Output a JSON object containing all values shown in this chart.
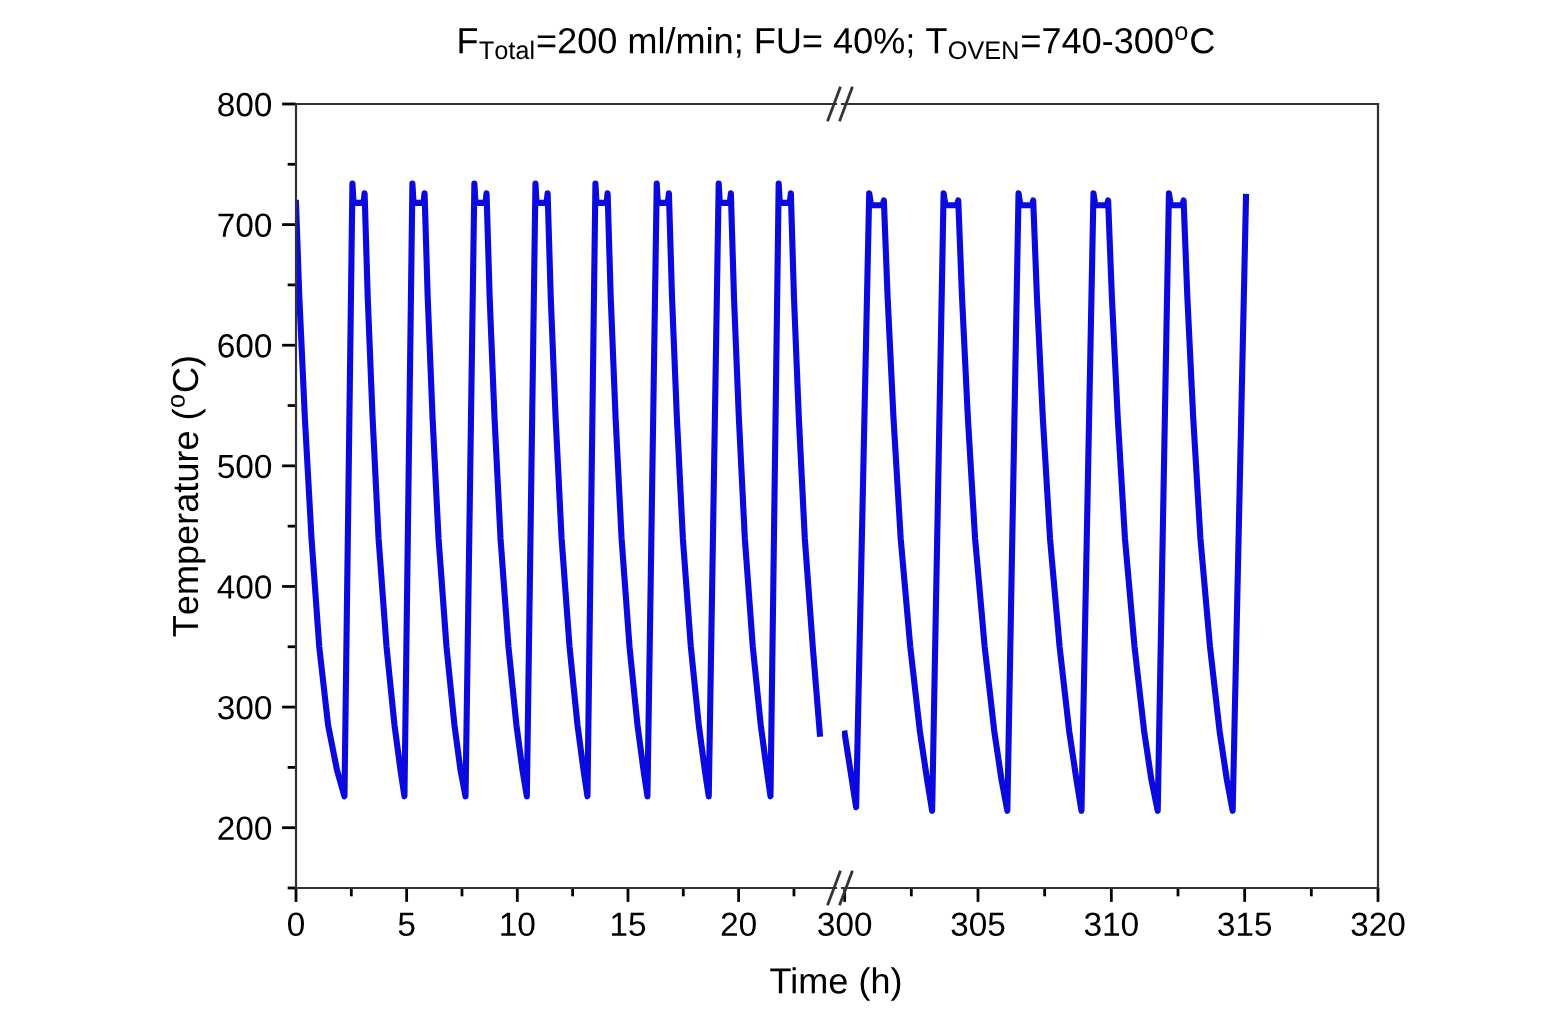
{
  "chart_data": [
    {
      "type": "line",
      "title": "F$_{Total}$=200 ml/min; FU= 40%; T$_{OVEN}$=740-300$^{o}$C",
      "xlabel": "Time (h)",
      "ylabel": "Temperature ($^{o}$C)",
      "series": [
        {
          "color": "#0a0ae0",
          "x": [
            0,
            0.15,
            0.4,
            0.7,
            1.05,
            1.45,
            1.85,
            2.19,
            2.55,
            2.6,
            3.05,
            3.1,
            3.24,
            3.46,
            3.73,
            4.09,
            4.45,
            4.72,
            4.9,
            5.26,
            5.31,
            5.76,
            5.81,
            5.95,
            6.17,
            6.44,
            6.8,
            7.16,
            7.43,
            7.66,
            8.06,
            8.11,
            8.56,
            8.61,
            8.75,
            8.97,
            9.24,
            9.6,
            9.96,
            10.23,
            10.43,
            10.82,
            10.87,
            11.32,
            11.37,
            11.51,
            11.73,
            12.0,
            12.36,
            12.72,
            12.99,
            13.17,
            13.53,
            13.58,
            14.03,
            14.08,
            14.22,
            14.44,
            14.71,
            15.07,
            15.43,
            15.7,
            15.88,
            16.3,
            16.35,
            16.8,
            16.85,
            16.99,
            17.21,
            17.48,
            17.84,
            18.2,
            18.47,
            18.65,
            19.1,
            19.15,
            19.6,
            19.65,
            19.79,
            20.01,
            20.28,
            20.64,
            21.0,
            21.27,
            21.44,
            21.81,
            21.86,
            22.31,
            22.36,
            22.5,
            22.72,
            22.99,
            23.35,
            23.67
          ],
          "values": [
            718,
            640,
            540,
            440,
            350,
            285,
            248,
            226,
            734,
            718,
            718,
            726,
            640,
            540,
            440,
            350,
            285,
            248,
            226,
            734,
            718,
            718,
            726,
            640,
            540,
            440,
            350,
            285,
            248,
            226,
            734,
            718,
            718,
            726,
            640,
            540,
            440,
            350,
            285,
            248,
            226,
            734,
            718,
            718,
            726,
            640,
            540,
            440,
            350,
            285,
            248,
            226,
            734,
            718,
            718,
            726,
            640,
            540,
            440,
            350,
            285,
            248,
            226,
            734,
            718,
            718,
            726,
            640,
            540,
            440,
            350,
            285,
            248,
            226,
            734,
            718,
            718,
            726,
            640,
            540,
            440,
            350,
            285,
            248,
            226,
            734,
            718,
            718,
            726,
            640,
            540,
            440,
            350,
            278
          ]
        }
      ],
      "xlim": [
        0,
        24.4
      ],
      "xticks": [
        0,
        5,
        10,
        15,
        20
      ],
      "ylim": [
        150,
        800
      ],
      "yticks": [
        200,
        300,
        400,
        500,
        600,
        700,
        800
      ]
    },
    {
      "type": "line",
      "series": [
        {
          "color": "#0a0ae0",
          "x": [
            300.0,
            300.43,
            300.92,
            300.99,
            301.42,
            301.47,
            301.61,
            301.83,
            302.1,
            302.46,
            302.82,
            303.09,
            303.28,
            303.71,
            303.78,
            304.21,
            304.26,
            304.4,
            304.62,
            304.89,
            305.25,
            305.61,
            305.88,
            306.1,
            306.52,
            306.59,
            307.02,
            307.07,
            307.21,
            307.43,
            307.7,
            308.06,
            308.42,
            308.69,
            308.88,
            309.33,
            309.4,
            309.83,
            309.88,
            310.02,
            310.24,
            310.51,
            310.87,
            311.23,
            311.5,
            311.74,
            312.16,
            312.23,
            312.66,
            312.71,
            312.85,
            313.07,
            313.34,
            313.7,
            314.06,
            314.33,
            314.55,
            315.05
          ],
          "values": [
            278,
            217,
            726,
            716,
            716,
            720,
            640,
            540,
            440,
            350,
            280,
            240,
            214,
            726,
            716,
            716,
            720,
            640,
            540,
            440,
            350,
            280,
            240,
            214,
            726,
            716,
            716,
            720,
            640,
            540,
            440,
            350,
            280,
            240,
            214,
            726,
            716,
            716,
            720,
            640,
            540,
            440,
            350,
            280,
            240,
            214,
            726,
            716,
            716,
            720,
            640,
            540,
            440,
            350,
            280,
            240,
            214,
            723
          ]
        }
      ],
      "xlim": [
        299.9,
        320
      ],
      "xticks": [
        300,
        305,
        310,
        315,
        320
      ],
      "ylim": [
        150,
        800
      ],
      "yticks": [
        200,
        300,
        400,
        500,
        600,
        700,
        800
      ],
      "tick_labels": "x"
    }
  ]
}
